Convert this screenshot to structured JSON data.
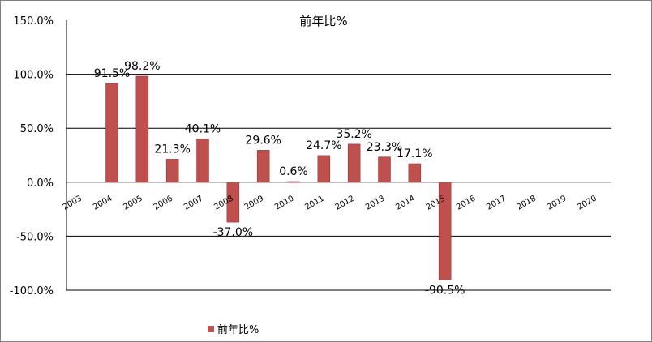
{
  "chart_data": {
    "type": "bar",
    "title": "前年比%",
    "categories": [
      "2003",
      "2004",
      "2005",
      "2006",
      "2007",
      "2008",
      "2009",
      "2010",
      "2011",
      "2012",
      "2013",
      "2014",
      "2015",
      "2016",
      "2017",
      "2018",
      "2019",
      "2020"
    ],
    "series": [
      {
        "name": "前年比%",
        "values": [
          null,
          91.5,
          98.2,
          21.3,
          40.1,
          -37.0,
          29.6,
          0.6,
          24.7,
          35.2,
          23.3,
          17.1,
          -90.5,
          null,
          null,
          null,
          null,
          null
        ],
        "labels": [
          "",
          "91.5%",
          "98.2%",
          "21.3%",
          "40.1%",
          "-37.0%",
          "29.6%",
          "0.6%",
          "24.7%",
          "35.2%",
          "23.3%",
          "17.1%",
          "-90.5%",
          "",
          "",
          "",
          "",
          ""
        ]
      }
    ],
    "yticks": [
      "150.0%",
      "100.0%",
      "50.0%",
      "0.0%",
      "-50.0%",
      "-100.0%"
    ],
    "ylim": [
      -100,
      150
    ],
    "grid": true,
    "legend_position": "bottom",
    "colors": {
      "bar": "#c0504d",
      "bar_edge": "#8c3836",
      "grid": "#000000"
    }
  }
}
